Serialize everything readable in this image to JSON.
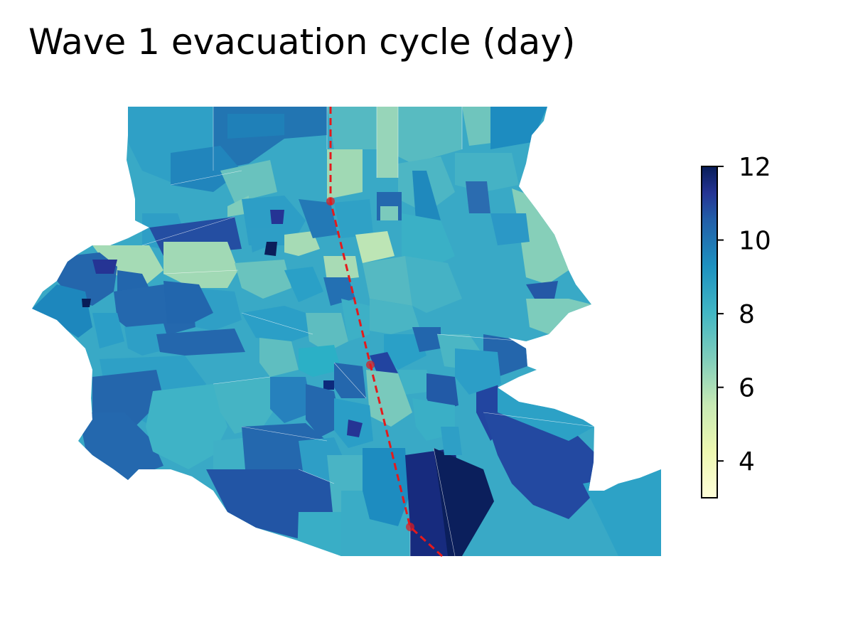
{
  "title": "Wave 1 evacuation cycle (day)",
  "colorbar": {
    "min": 3,
    "max": 12,
    "ticks": [
      4,
      6,
      8,
      10,
      12
    ],
    "colormap": [
      "#ffffd9",
      "#c7e9b4",
      "#7fcdbb",
      "#41b6c4",
      "#1d91c0",
      "#225ea8",
      "#0c2c84",
      "#081d58"
    ]
  },
  "track": {
    "color": "#e41a1c",
    "style": "dashed",
    "points": 3
  }
}
